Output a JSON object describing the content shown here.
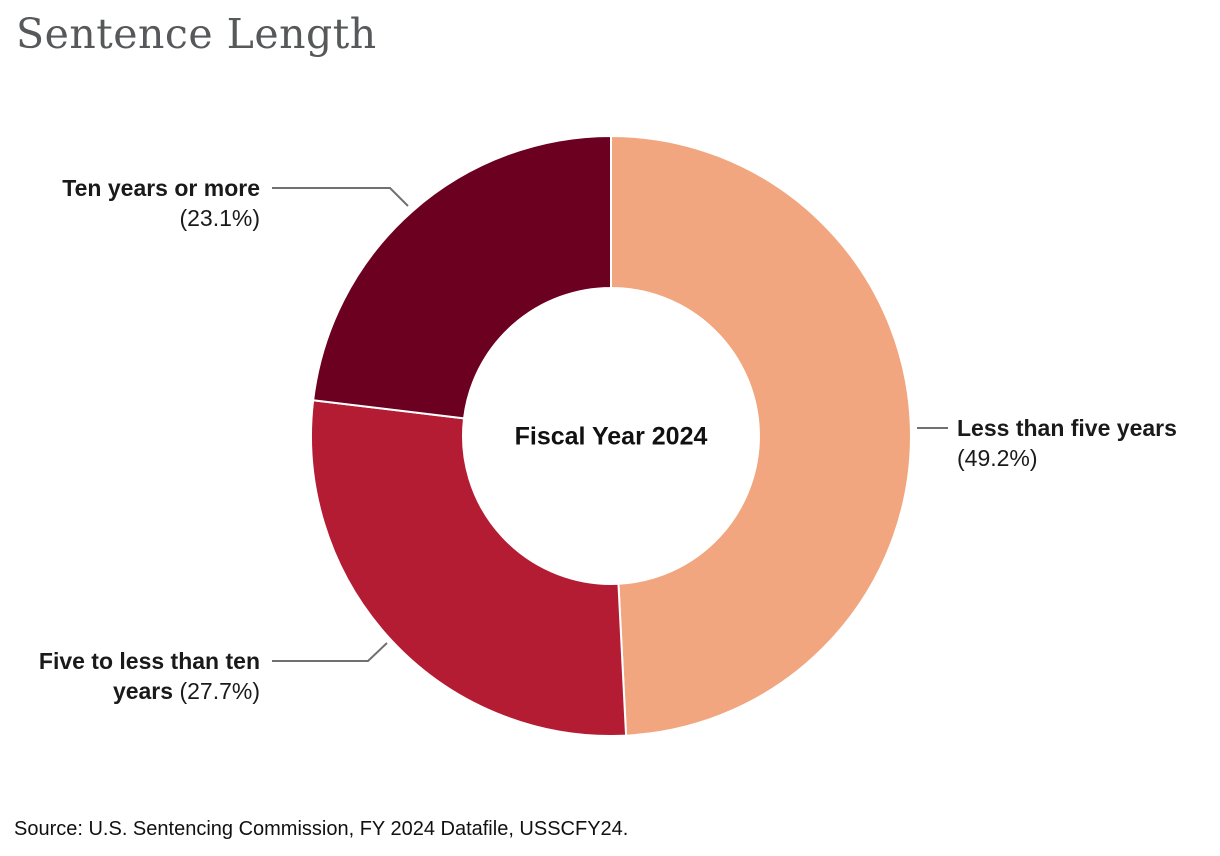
{
  "page": {
    "title": "Sentence Length",
    "source": "Source: U.S. Sentencing Commission, FY 2024 Datafile, USSCFY24."
  },
  "chart_data": {
    "type": "pie",
    "subtype": "donut",
    "title": "Sentence Length",
    "center_label": "Fiscal Year 2024",
    "direction": "clockwise",
    "start_angle_deg": 0,
    "legend_position": "callout-labels",
    "slices": [
      {
        "label": "Less than five years",
        "pct_label": "(49.2%)",
        "value": 49.2,
        "color": "#F2A67F"
      },
      {
        "label": "Five to less than ten years",
        "pct_label": "(27.7%)",
        "value": 27.7,
        "color": "#B41C33"
      },
      {
        "label": "Ten years or more",
        "pct_label": "(23.1%)",
        "value": 23.1,
        "color": "#6B0020"
      }
    ],
    "colors": {
      "title_text": "#57585A",
      "label_text": "#1A1A1A",
      "leader_line": "#707070",
      "slice_border": "#FFFFFF"
    }
  }
}
